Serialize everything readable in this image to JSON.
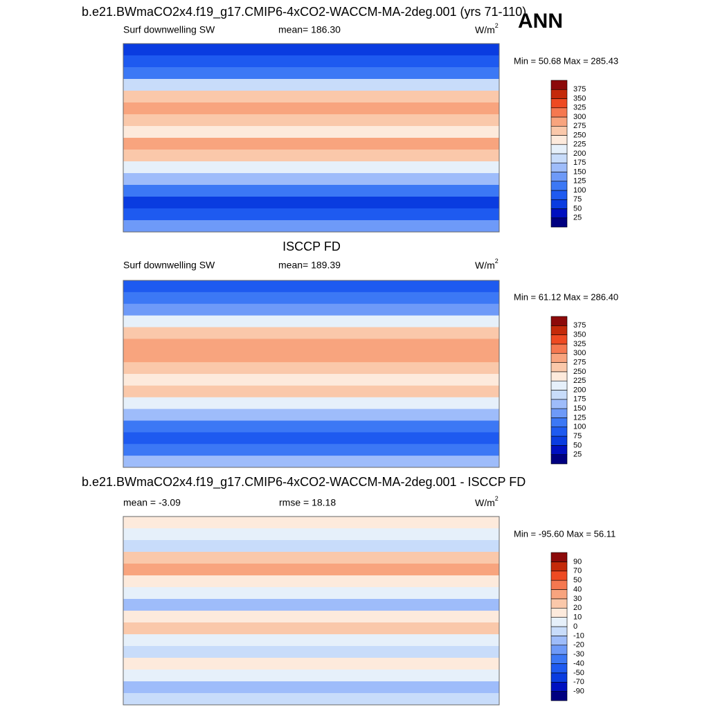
{
  "header": {
    "case": "b.e21.BWmaCO2x4.f19_g17.CMIP6-4xCO2-WACCM-MA-2deg.001 (yrs 71-110)",
    "season": "ANN"
  },
  "colors": [
    "#000080",
    "#0010c0",
    "#0a3ce0",
    "#1e5af0",
    "#3c78f5",
    "#6e9af8",
    "#9ebcfa",
    "#c8dcfa",
    "#e6f0fa",
    "#fdeadc",
    "#fac8aa",
    "#f8a47e",
    "#f57850",
    "#ee4a22",
    "#c42a0a",
    "#8c0a0a"
  ],
  "panels": [
    {
      "title": "",
      "left": "Surf downwelling SW",
      "center": "mean= 186.30",
      "units": {
        "base": "W/m",
        "sup": "2"
      },
      "minmax": "Min =  50.68 Max = 285.43",
      "levels": [
        25,
        50,
        75,
        100,
        125,
        150,
        175,
        200,
        225,
        250,
        275,
        300,
        325,
        350,
        375
      ]
    },
    {
      "title": "ISCCP FD",
      "left": "Surf downwelling SW",
      "center": "mean= 189.39",
      "units": {
        "base": "W/m",
        "sup": "2"
      },
      "minmax": "Min =  61.12 Max = 286.40",
      "levels": [
        25,
        50,
        75,
        100,
        125,
        150,
        175,
        200,
        225,
        250,
        275,
        300,
        325,
        350,
        375
      ]
    },
    {
      "title": "b.e21.BWmaCO2x4.f19_g17.CMIP6-4xCO2-WACCM-MA-2deg.001 - ISCCP FD",
      "left": "mean =  -3.09",
      "center": "rmse =  18.18",
      "units": {
        "base": "W/m",
        "sup": "2"
      },
      "minmax": "Min = -95.60 Max =  56.11",
      "levels": [
        -90,
        -70,
        -50,
        -40,
        -30,
        -20,
        -10,
        0,
        10,
        20,
        30,
        40,
        50,
        70,
        90
      ]
    }
  ]
}
